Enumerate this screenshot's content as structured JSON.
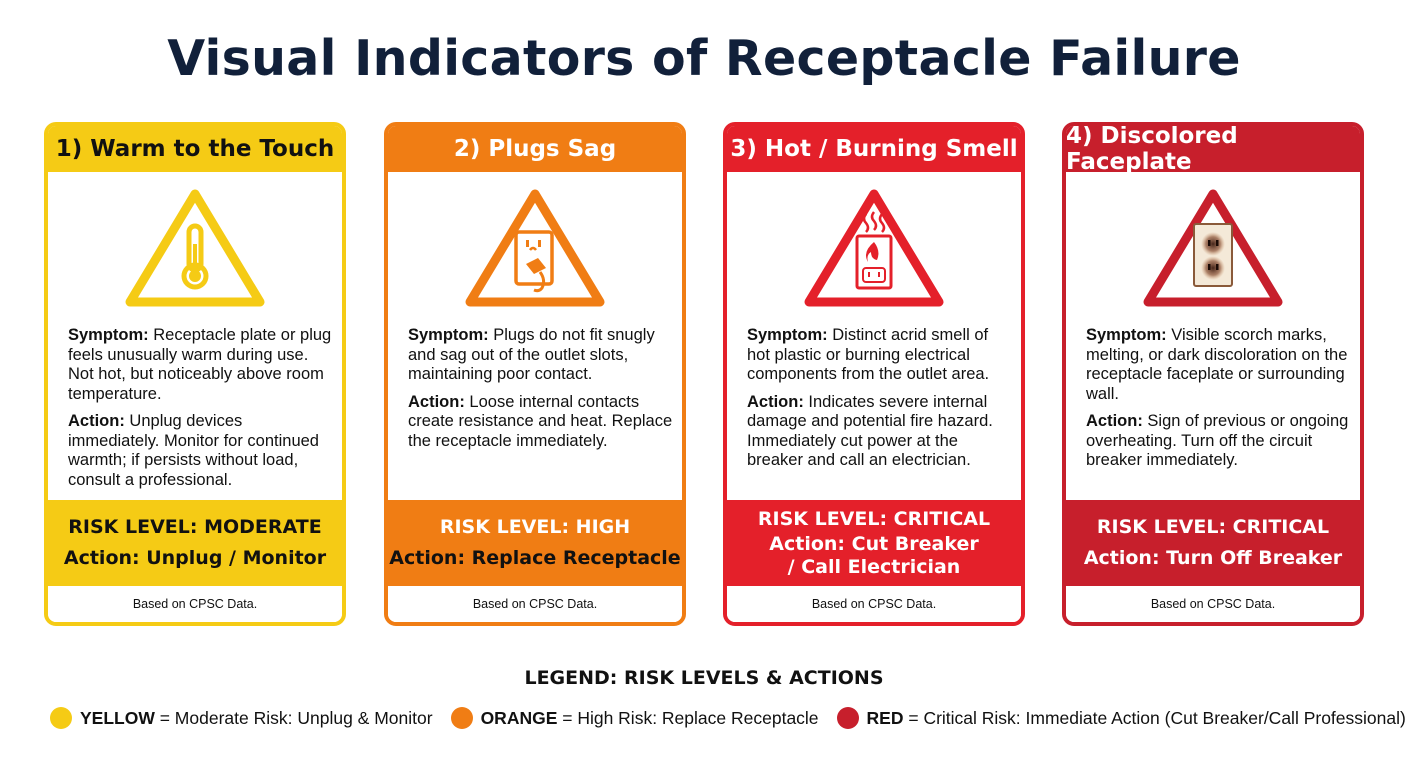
{
  "title": "Visual Indicators of Receptacle Failure",
  "cards": [
    {
      "header": "1) Warm to the Touch",
      "icon": "thermometer-warning-icon",
      "symptom_label": "Symptom:",
      "symptom": "Receptacle plate or plug feels unusually warm during use. Not hot, but noticeably above room temperature.",
      "action_label": "Action:",
      "action": "Unplug devices immediately. Monitor for continued warmth; if persists without load, consult a professional.",
      "risk_level": "RISK LEVEL: MODERATE",
      "risk_action": "Action: Unplug / Monitor",
      "footer": "Based on CPSC Data.",
      "color": "#f5cb15"
    },
    {
      "header": "2) Plugs Sag",
      "icon": "sagging-plug-warning-icon",
      "symptom_label": "Symptom:",
      "symptom": "Plugs do not fit snugly and sag out of the outlet slots, maintaining poor contact.",
      "action_label": "Action:",
      "action": "Loose internal contacts create resistance and heat. Replace the receptacle immediately.",
      "risk_level": "RISK LEVEL: HIGH",
      "risk_action": "Action: Replace Receptacle",
      "footer": "Based on CPSC Data.",
      "color": "#f07d14"
    },
    {
      "header": "3) Hot / Burning Smell",
      "icon": "burning-outlet-warning-icon",
      "symptom_label": "Symptom:",
      "symptom": "Distinct acrid smell of hot plastic or burning electrical components from the outlet area.",
      "action_label": "Action:",
      "action": "Indicates severe internal damage and potential fire hazard. Immediately cut power at the breaker and call an electrician.",
      "risk_level": "RISK LEVEL: CRITICAL",
      "risk_action": "Action: Cut Breaker / Call Electrician",
      "footer": "Based on CPSC Data.",
      "color": "#e4202a"
    },
    {
      "header": "4) Discolored Faceplate",
      "icon": "scorched-faceplate-warning-icon",
      "symptom_label": "Symptom:",
      "symptom": "Visible scorch marks, melting, or dark discoloration on the receptacle faceplate or surrounding wall.",
      "action_label": "Action:",
      "action": "Sign of previous or ongoing overheating. Turn off the circuit breaker immediately.",
      "risk_level": "RISK LEVEL: CRITICAL",
      "risk_action": "Action: Turn Off Breaker",
      "footer": "Based on CPSC Data.",
      "color": "#c71f2c"
    }
  ],
  "legend": {
    "title": "LEGEND: RISK LEVELS & ACTIONS",
    "items": [
      {
        "key": "YELLOW",
        "text": " = Moderate Risk: Unplug & Monitor",
        "color": "#f5cb15"
      },
      {
        "key": "ORANGE",
        "text": " = High Risk: Replace Receptacle",
        "color": "#f07d14"
      },
      {
        "key": "RED",
        "text": " = Critical Risk: Immediate Action (Cut Breaker/Call Professional)",
        "color": "#c71f2c"
      }
    ]
  }
}
